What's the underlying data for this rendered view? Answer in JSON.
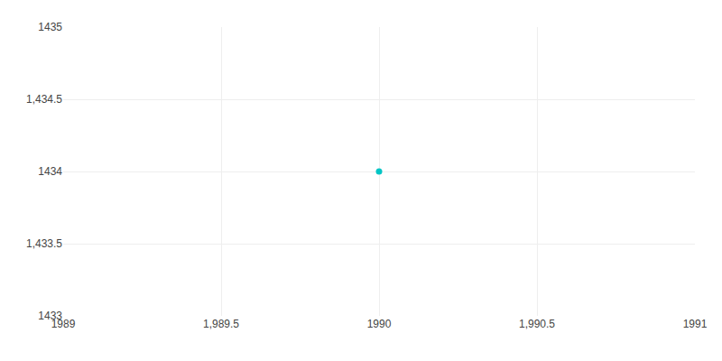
{
  "chart_data": {
    "type": "scatter",
    "x": [
      1990
    ],
    "values": [
      1434
    ],
    "color": "#00C5C5",
    "xlim": [
      1989,
      1991
    ],
    "ylim": [
      1433,
      1435
    ],
    "xticks": [
      1989,
      {
        "value": 1989.5,
        "label": "1,989.5"
      },
      1990,
      {
        "value": 1990.5,
        "label": "1,990.5"
      },
      1991
    ],
    "yticks": [
      1433,
      {
        "value": 1433.5,
        "label": "1,433.5"
      },
      1434,
      {
        "value": 1434.5,
        "label": "1,434.5"
      },
      1435
    ],
    "grid": true
  }
}
